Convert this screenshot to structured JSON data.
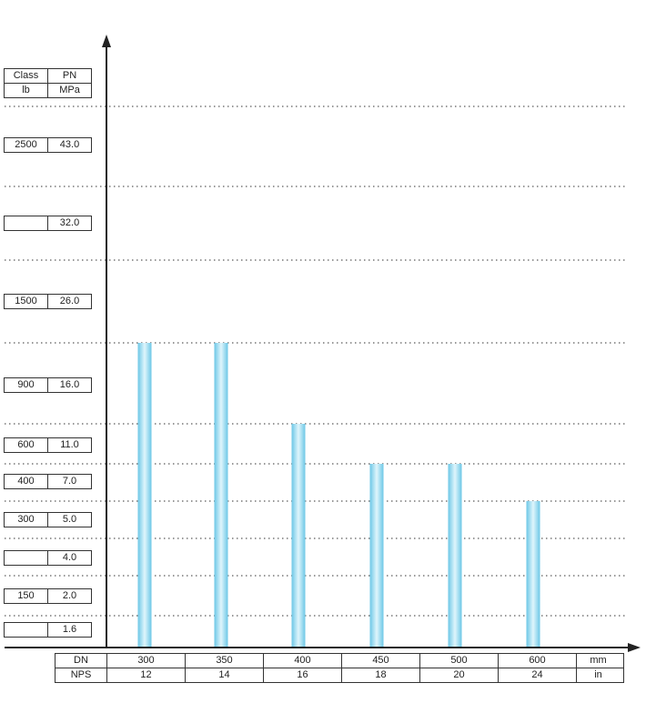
{
  "chart_data": {
    "type": "bar",
    "y_header": {
      "class_label": "Class",
      "class_unit": "lb",
      "pn_label": "PN",
      "pn_unit": "MPa"
    },
    "y_levels": [
      {
        "class": "2500",
        "pn": "43.0"
      },
      {
        "class": "",
        "pn": "32.0"
      },
      {
        "class": "1500",
        "pn": "26.0"
      },
      {
        "class": "900",
        "pn": "16.0"
      },
      {
        "class": "600",
        "pn": "11.0"
      },
      {
        "class": "400",
        "pn": "7.0"
      },
      {
        "class": "300",
        "pn": "5.0"
      },
      {
        "class": "",
        "pn": "4.0"
      },
      {
        "class": "150",
        "pn": "2.0"
      },
      {
        "class": "",
        "pn": "1.6"
      }
    ],
    "x_header": {
      "dn_label": "DN",
      "dn_unit": "mm",
      "nps_label": "NPS",
      "nps_unit": "in"
    },
    "categories": [
      {
        "dn": "300",
        "nps": "12"
      },
      {
        "dn": "350",
        "nps": "14"
      },
      {
        "dn": "400",
        "nps": "16"
      },
      {
        "dn": "450",
        "nps": "18"
      },
      {
        "dn": "500",
        "nps": "20"
      },
      {
        "dn": "600",
        "nps": "24"
      }
    ],
    "values_pn": [
      16.0,
      16.0,
      11.0,
      7.0,
      7.0,
      5.0
    ],
    "bar_color": "#7fd3ec",
    "grid": "dotted"
  }
}
